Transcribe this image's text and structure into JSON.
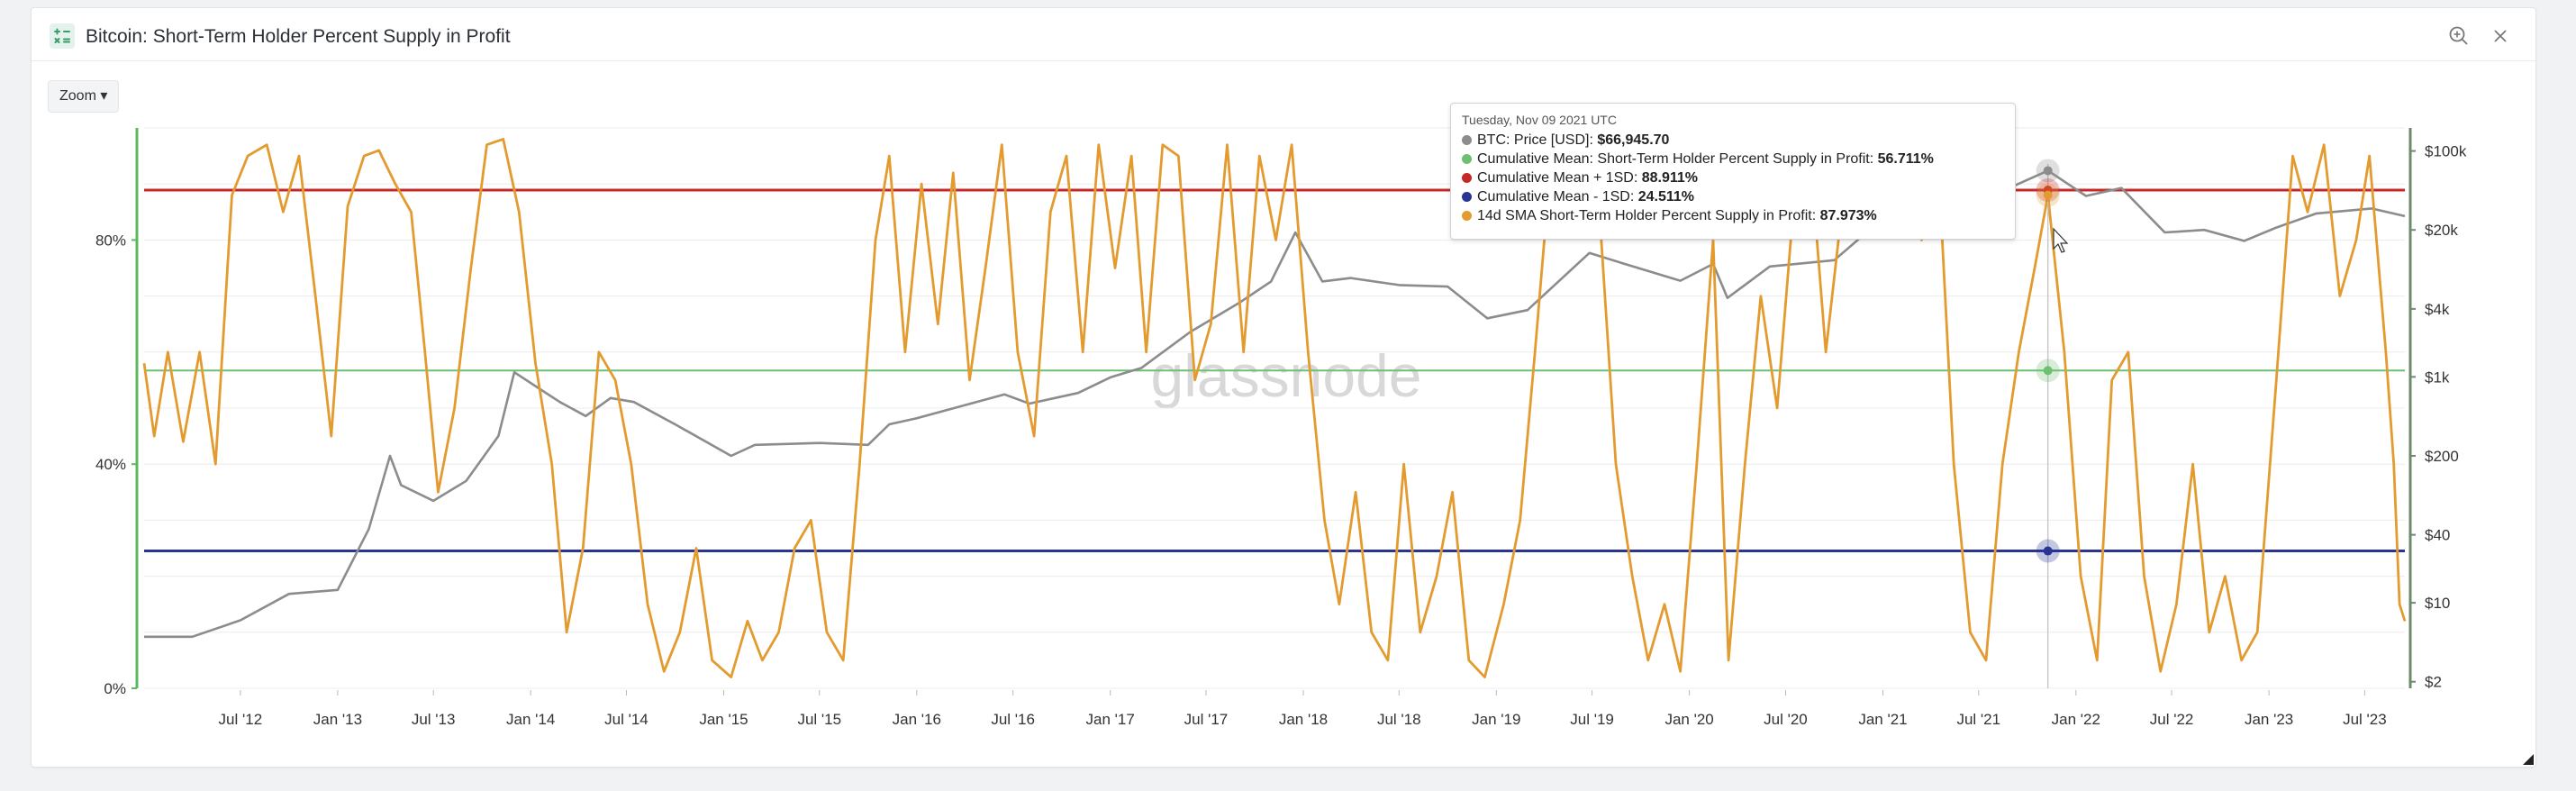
{
  "window": {
    "title": "Bitcoin: Short-Term Holder Percent Supply in Profit",
    "zoom_label": "Zoom ▾"
  },
  "icons": {
    "app": "chart-app-icon",
    "zoom_in": "zoom-in-icon",
    "close": "close-icon",
    "cursor": "mouse-cursor-icon"
  },
  "watermark": "glassnode",
  "tooltip": {
    "date": "Tuesday, Nov 09 2021 UTC",
    "rows": [
      {
        "label": "BTC: Price [USD]: ",
        "value": "$66,945.70",
        "color": "#8c8c8c"
      },
      {
        "label": "Cumulative Mean: Short-Term Holder Percent Supply in Profit: ",
        "value": "56.711%",
        "color": "#6fbf73"
      },
      {
        "label": "Cumulative Mean + 1SD: ",
        "value": "88.911%",
        "color": "#c62828"
      },
      {
        "label": "Cumulative Mean - 1SD: ",
        "value": "24.511%",
        "color": "#283593"
      },
      {
        "label": "14d SMA Short-Term Holder Percent Supply in Profit: ",
        "value": "87.973%",
        "color": "#e39b2f"
      }
    ]
  },
  "chart_data": {
    "type": "line",
    "x_ticks": [
      "Jul '12",
      "Jan '13",
      "Jul '13",
      "Jan '14",
      "Jul '14",
      "Jan '15",
      "Jul '15",
      "Jan '16",
      "Jul '16",
      "Jan '17",
      "Jul '17",
      "Jan '18",
      "Jul '18",
      "Jan '19",
      "Jul '19",
      "Jan '20",
      "Jul '20",
      "Jan '21",
      "Jul '21",
      "Jan '22",
      "Jul '22",
      "Jan '23",
      "Jul '23"
    ],
    "x_range": [
      "2012-01-01",
      "2023-09-15"
    ],
    "left_axis": {
      "ticks": [
        "0%",
        "40%",
        "80%"
      ],
      "range": [
        0,
        100
      ]
    },
    "right_axis": {
      "scale": "log",
      "ticks": [
        "$2",
        "$10",
        "$40",
        "$200",
        "$1k",
        "$4k",
        "$20k",
        "$100k"
      ]
    },
    "colors": {
      "price": "#8c8c8c",
      "sth": "#e39b2f",
      "mean": "#6fbf73",
      "plus1sd": "#c62828",
      "minus1sd": "#283593",
      "left_axis": "#5cb85c",
      "right_axis": "#6d8b6a"
    },
    "series": [
      {
        "name": "14d SMA Short-Term Holder Percent Supply in Profit",
        "axis": "left",
        "points": [
          [
            "2012-01-01",
            58
          ],
          [
            "2012-01-20",
            45
          ],
          [
            "2012-02-15",
            60
          ],
          [
            "2012-03-15",
            44
          ],
          [
            "2012-04-15",
            60
          ],
          [
            "2012-05-15",
            40
          ],
          [
            "2012-06-15",
            88
          ],
          [
            "2012-07-15",
            95
          ],
          [
            "2012-08-20",
            97
          ],
          [
            "2012-09-20",
            85
          ],
          [
            "2012-10-20",
            95
          ],
          [
            "2012-11-20",
            70
          ],
          [
            "2012-12-20",
            45
          ],
          [
            "2013-01-20",
            86
          ],
          [
            "2013-02-20",
            95
          ],
          [
            "2013-03-20",
            96
          ],
          [
            "2013-04-20",
            90
          ],
          [
            "2013-05-20",
            85
          ],
          [
            "2013-06-15",
            60
          ],
          [
            "2013-07-10",
            35
          ],
          [
            "2013-08-10",
            50
          ],
          [
            "2013-09-10",
            75
          ],
          [
            "2013-10-10",
            97
          ],
          [
            "2013-11-10",
            98
          ],
          [
            "2013-12-10",
            85
          ],
          [
            "2014-01-10",
            58
          ],
          [
            "2014-02-10",
            40
          ],
          [
            "2014-03-10",
            10
          ],
          [
            "2014-04-10",
            25
          ],
          [
            "2014-05-10",
            60
          ],
          [
            "2014-06-10",
            55
          ],
          [
            "2014-07-10",
            40
          ],
          [
            "2014-08-10",
            15
          ],
          [
            "2014-09-10",
            3
          ],
          [
            "2014-10-10",
            10
          ],
          [
            "2014-11-10",
            25
          ],
          [
            "2014-12-10",
            5
          ],
          [
            "2015-01-15",
            2
          ],
          [
            "2015-02-15",
            12
          ],
          [
            "2015-03-15",
            5
          ],
          [
            "2015-04-15",
            10
          ],
          [
            "2015-05-15",
            25
          ],
          [
            "2015-06-15",
            30
          ],
          [
            "2015-07-15",
            10
          ],
          [
            "2015-08-15",
            5
          ],
          [
            "2015-09-15",
            40
          ],
          [
            "2015-10-15",
            80
          ],
          [
            "2015-11-10",
            95
          ],
          [
            "2015-12-10",
            60
          ],
          [
            "2016-01-10",
            90
          ],
          [
            "2016-02-10",
            65
          ],
          [
            "2016-03-10",
            92
          ],
          [
            "2016-04-10",
            55
          ],
          [
            "2016-05-10",
            75
          ],
          [
            "2016-06-10",
            97
          ],
          [
            "2016-07-10",
            60
          ],
          [
            "2016-08-10",
            45
          ],
          [
            "2016-09-10",
            85
          ],
          [
            "2016-10-10",
            95
          ],
          [
            "2016-11-10",
            60
          ],
          [
            "2016-12-10",
            97
          ],
          [
            "2017-01-10",
            75
          ],
          [
            "2017-02-10",
            95
          ],
          [
            "2017-03-10",
            60
          ],
          [
            "2017-04-10",
            97
          ],
          [
            "2017-05-10",
            95
          ],
          [
            "2017-06-10",
            55
          ],
          [
            "2017-07-10",
            65
          ],
          [
            "2017-08-10",
            97
          ],
          [
            "2017-09-10",
            60
          ],
          [
            "2017-10-10",
            95
          ],
          [
            "2017-11-10",
            80
          ],
          [
            "2017-12-10",
            97
          ],
          [
            "2018-01-10",
            60
          ],
          [
            "2018-02-10",
            30
          ],
          [
            "2018-03-10",
            15
          ],
          [
            "2018-04-10",
            35
          ],
          [
            "2018-05-10",
            10
          ],
          [
            "2018-06-10",
            5
          ],
          [
            "2018-07-10",
            40
          ],
          [
            "2018-08-10",
            10
          ],
          [
            "2018-09-10",
            20
          ],
          [
            "2018-10-10",
            35
          ],
          [
            "2018-11-10",
            5
          ],
          [
            "2018-12-10",
            2
          ],
          [
            "2019-01-15",
            15
          ],
          [
            "2019-02-15",
            30
          ],
          [
            "2019-03-15",
            60
          ],
          [
            "2019-04-15",
            95
          ],
          [
            "2019-05-15",
            97
          ],
          [
            "2019-06-15",
            95
          ],
          [
            "2019-07-15",
            85
          ],
          [
            "2019-08-15",
            40
          ],
          [
            "2019-09-15",
            20
          ],
          [
            "2019-10-15",
            5
          ],
          [
            "2019-11-15",
            15
          ],
          [
            "2019-12-15",
            3
          ],
          [
            "2020-01-15",
            40
          ],
          [
            "2020-02-15",
            80
          ],
          [
            "2020-03-15",
            5
          ],
          [
            "2020-04-15",
            40
          ],
          [
            "2020-05-15",
            70
          ],
          [
            "2020-06-15",
            50
          ],
          [
            "2020-07-15",
            85
          ],
          [
            "2020-08-15",
            97
          ],
          [
            "2020-09-15",
            60
          ],
          [
            "2020-10-15",
            85
          ],
          [
            "2020-11-15",
            98
          ],
          [
            "2020-12-15",
            95
          ],
          [
            "2021-01-15",
            97
          ],
          [
            "2021-02-15",
            90
          ],
          [
            "2021-03-15",
            80
          ],
          [
            "2021-04-15",
            95
          ],
          [
            "2021-05-15",
            40
          ],
          [
            "2021-06-15",
            10
          ],
          [
            "2021-07-15",
            5
          ],
          [
            "2021-08-15",
            40
          ],
          [
            "2021-09-15",
            60
          ],
          [
            "2021-10-15",
            75
          ],
          [
            "2021-11-09",
            88
          ],
          [
            "2021-12-10",
            60
          ],
          [
            "2022-01-10",
            20
          ],
          [
            "2022-02-10",
            5
          ],
          [
            "2022-03-10",
            55
          ],
          [
            "2022-04-10",
            60
          ],
          [
            "2022-05-10",
            20
          ],
          [
            "2022-06-10",
            3
          ],
          [
            "2022-07-10",
            15
          ],
          [
            "2022-08-10",
            40
          ],
          [
            "2022-09-10",
            10
          ],
          [
            "2022-10-10",
            20
          ],
          [
            "2022-11-10",
            5
          ],
          [
            "2022-12-10",
            10
          ],
          [
            "2023-01-15",
            55
          ],
          [
            "2023-02-15",
            95
          ],
          [
            "2023-03-15",
            85
          ],
          [
            "2023-04-15",
            97
          ],
          [
            "2023-05-15",
            70
          ],
          [
            "2023-06-15",
            80
          ],
          [
            "2023-07-10",
            95
          ],
          [
            "2023-08-10",
            60
          ],
          [
            "2023-08-25",
            40
          ],
          [
            "2023-09-05",
            15
          ],
          [
            "2023-09-15",
            12
          ]
        ]
      },
      {
        "name": "BTC: Price [USD]",
        "axis": "right",
        "points": [
          [
            "2012-01-01",
            5
          ],
          [
            "2012-04-01",
            5
          ],
          [
            "2012-07-01",
            7
          ],
          [
            "2012-10-01",
            12
          ],
          [
            "2013-01-01",
            13
          ],
          [
            "2013-03-01",
            45
          ],
          [
            "2013-04-10",
            200
          ],
          [
            "2013-05-01",
            110
          ],
          [
            "2013-07-01",
            80
          ],
          [
            "2013-09-01",
            120
          ],
          [
            "2013-11-01",
            300
          ],
          [
            "2013-12-01",
            1100
          ],
          [
            "2014-01-15",
            800
          ],
          [
            "2014-02-25",
            600
          ],
          [
            "2014-04-15",
            450
          ],
          [
            "2014-06-01",
            650
          ],
          [
            "2014-07-15",
            600
          ],
          [
            "2014-10-01",
            380
          ],
          [
            "2015-01-15",
            200
          ],
          [
            "2015-03-01",
            250
          ],
          [
            "2015-07-01",
            260
          ],
          [
            "2015-10-01",
            250
          ],
          [
            "2015-11-10",
            380
          ],
          [
            "2016-01-01",
            430
          ],
          [
            "2016-06-15",
            700
          ],
          [
            "2016-08-01",
            580
          ],
          [
            "2016-11-01",
            720
          ],
          [
            "2017-01-01",
            990
          ],
          [
            "2017-03-01",
            1200
          ],
          [
            "2017-06-01",
            2500
          ],
          [
            "2017-09-01",
            4500
          ],
          [
            "2017-11-01",
            7000
          ],
          [
            "2017-12-17",
            19000
          ],
          [
            "2018-02-06",
            7000
          ],
          [
            "2018-04-01",
            7500
          ],
          [
            "2018-07-01",
            6500
          ],
          [
            "2018-10-01",
            6300
          ],
          [
            "2018-12-15",
            3300
          ],
          [
            "2019-03-01",
            3900
          ],
          [
            "2019-06-26",
            12500
          ],
          [
            "2019-09-01",
            10000
          ],
          [
            "2019-12-15",
            7100
          ],
          [
            "2020-02-15",
            10000
          ],
          [
            "2020-03-13",
            5000
          ],
          [
            "2020-06-01",
            9500
          ],
          [
            "2020-10-01",
            10800
          ],
          [
            "2020-12-01",
            19000
          ],
          [
            "2021-01-08",
            40000
          ],
          [
            "2021-04-14",
            63000
          ],
          [
            "2021-06-22",
            31000
          ],
          [
            "2021-09-01",
            48000
          ],
          [
            "2021-11-09",
            66945.7
          ],
          [
            "2022-01-20",
            40000
          ],
          [
            "2022-03-28",
            47000
          ],
          [
            "2022-06-18",
            19000
          ],
          [
            "2022-09-01",
            20000
          ],
          [
            "2022-11-15",
            16000
          ],
          [
            "2023-01-15",
            21000
          ],
          [
            "2023-04-01",
            28000
          ],
          [
            "2023-07-14",
            31000
          ],
          [
            "2023-09-15",
            26500
          ]
        ]
      },
      {
        "name": "Cumulative Mean: Short-Term Holder Percent Supply in Profit",
        "axis": "left",
        "value": 56.711
      },
      {
        "name": "Cumulative Mean + 1SD",
        "axis": "left",
        "value": 88.911
      },
      {
        "name": "Cumulative Mean - 1SD",
        "axis": "left",
        "value": 24.511
      }
    ],
    "hover": {
      "date": "2021-11-09"
    }
  }
}
